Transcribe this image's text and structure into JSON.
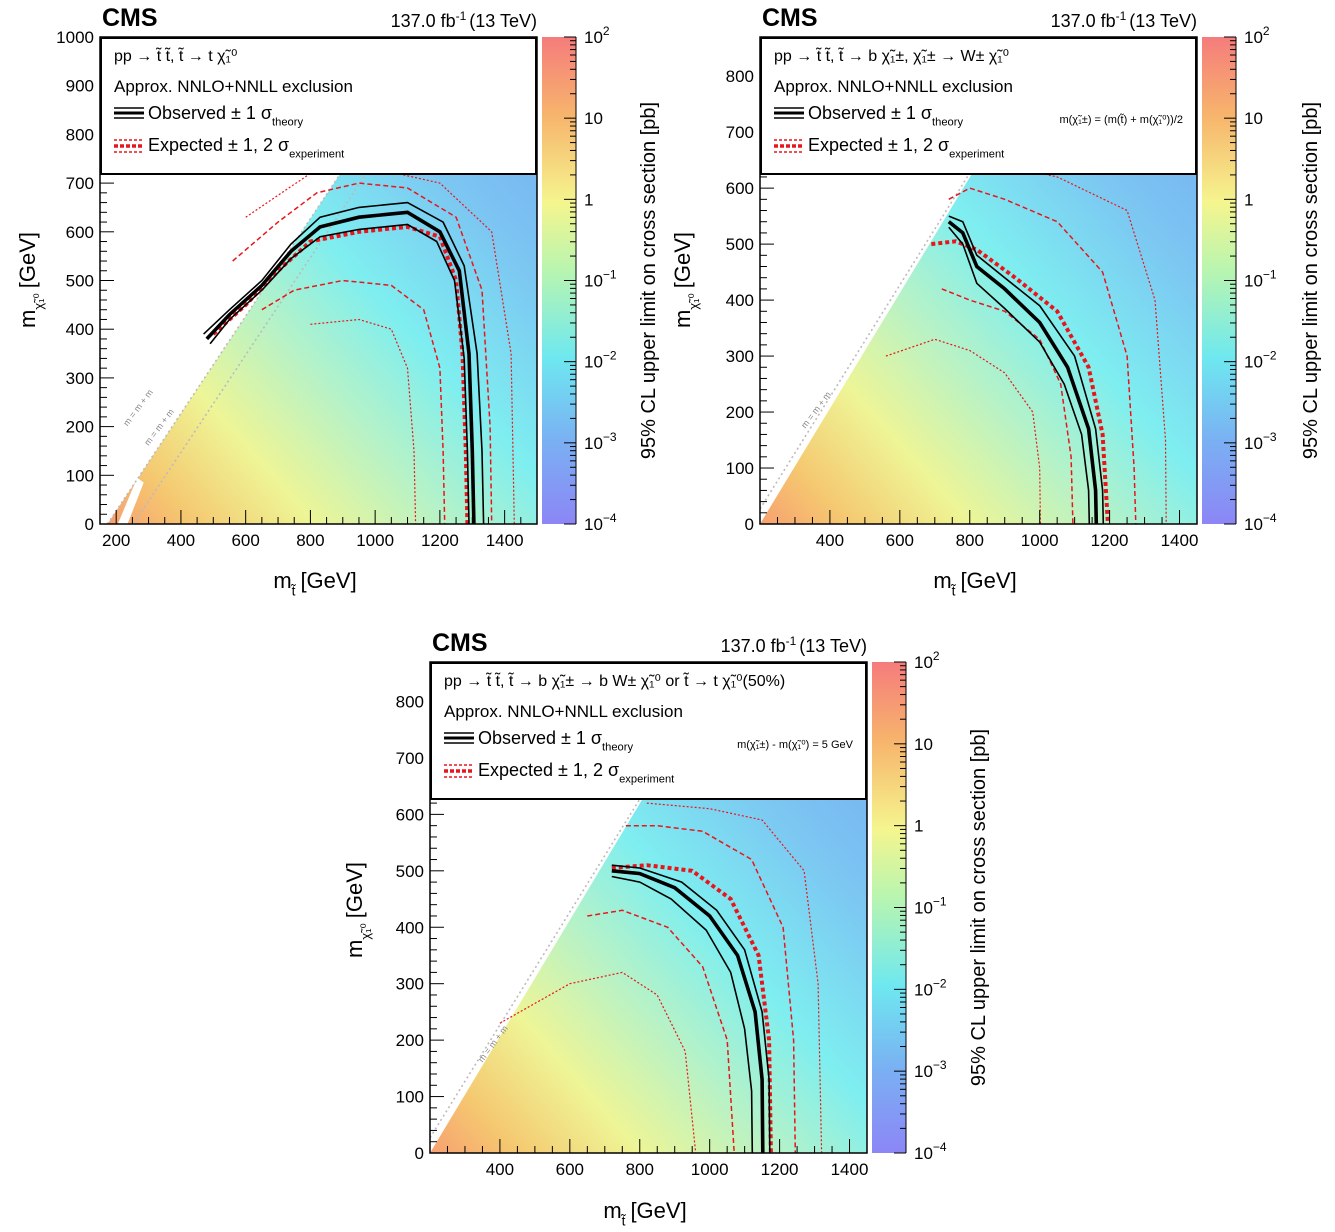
{
  "colorbar": {
    "label": "95% CL upper limit on cross section [pb]",
    "tick_mantissa": "10",
    "ticks": [
      {
        "text": "10",
        "exp": "2",
        "log": 2
      },
      {
        "text": "10",
        "exp": "",
        "log": 1
      },
      {
        "text": "1",
        "exp": "",
        "log": 0
      },
      {
        "text": "10",
        "exp": "−1",
        "log": -1
      },
      {
        "text": "10",
        "exp": "−2",
        "log": -2
      },
      {
        "text": "10",
        "exp": "−3",
        "log": -3
      },
      {
        "text": "10",
        "exp": "−4",
        "log": -4
      }
    ],
    "colors": [
      "#8c86f6",
      "#7ab0f3",
      "#6ee8f0",
      "#b8f5b0",
      "#f5f58e",
      "#f7b46c",
      "#f57c7c"
    ]
  },
  "colors": {
    "observed": "#000000",
    "expected": "#e8161c",
    "diagonal": "#bbbbbb"
  },
  "chart_data": [
    {
      "type": "heatmap",
      "cms": "CMS",
      "lumi": "137.0 fb",
      "lumi_exp": "-1",
      "energy": "(13 TeV)",
      "process_lines": [
        "pp → t̃ t̃, t̃ → t χ̃₁⁰"
      ],
      "approx": "Approx. NNLO+NNLL exclusion",
      "observed_label": "Observed ± 1 σ",
      "observed_sub": "theory",
      "expected_label": "Expected ± 1, 2 σ",
      "expected_sub": "experiment",
      "extra_note": "",
      "xlabel": "m",
      "xlabel_sub": "t̃",
      "xlabel_unit": "[GeV]",
      "ylabel": "m",
      "ylabel_sub": "χ̃₁⁰",
      "ylabel_unit": "[GeV]",
      "xlim": [
        150,
        1500
      ],
      "ylim": [
        0,
        1000
      ],
      "xticks": [
        200,
        400,
        600,
        800,
        1000,
        1200,
        1400
      ],
      "yticks": [
        0,
        100,
        200,
        300,
        400,
        500,
        600,
        700,
        800,
        900,
        1000
      ],
      "diag_labels": [
        "m  = m  + m",
        "m  = m  + m"
      ],
      "observed": [
        [
          480,
          380
        ],
        [
          550,
          430
        ],
        [
          650,
          490
        ],
        [
          740,
          560
        ],
        [
          830,
          610
        ],
        [
          950,
          630
        ],
        [
          1100,
          640
        ],
        [
          1200,
          600
        ],
        [
          1260,
          520
        ],
        [
          1290,
          350
        ],
        [
          1300,
          150
        ],
        [
          1305,
          0
        ]
      ],
      "observed_plus": [
        [
          470,
          390
        ],
        [
          550,
          440
        ],
        [
          650,
          500
        ],
        [
          740,
          575
        ],
        [
          830,
          630
        ],
        [
          950,
          650
        ],
        [
          1100,
          660
        ],
        [
          1210,
          620
        ],
        [
          1275,
          530
        ],
        [
          1315,
          350
        ],
        [
          1330,
          150
        ],
        [
          1335,
          0
        ]
      ],
      "observed_minus": [
        [
          490,
          370
        ],
        [
          550,
          420
        ],
        [
          650,
          480
        ],
        [
          740,
          545
        ],
        [
          830,
          590
        ],
        [
          950,
          605
        ],
        [
          1100,
          615
        ],
        [
          1190,
          580
        ],
        [
          1245,
          500
        ],
        [
          1275,
          340
        ],
        [
          1285,
          150
        ],
        [
          1290,
          0
        ]
      ],
      "expected": [
        [
          500,
          390
        ],
        [
          600,
          450
        ],
        [
          700,
          520
        ],
        [
          800,
          580
        ],
        [
          950,
          600
        ],
        [
          1100,
          610
        ],
        [
          1200,
          590
        ],
        [
          1250,
          500
        ],
        [
          1270,
          350
        ],
        [
          1280,
          150
        ],
        [
          1285,
          0
        ]
      ],
      "expected_1s_up": [
        [
          560,
          540
        ],
        [
          700,
          620
        ],
        [
          820,
          680
        ],
        [
          950,
          700
        ],
        [
          1100,
          690
        ],
        [
          1250,
          630
        ],
        [
          1330,
          480
        ],
        [
          1355,
          200
        ],
        [
          1360,
          0
        ]
      ],
      "expected_1s_dn": [
        [
          650,
          440
        ],
        [
          750,
          480
        ],
        [
          900,
          500
        ],
        [
          1050,
          490
        ],
        [
          1150,
          440
        ],
        [
          1200,
          320
        ],
        [
          1210,
          150
        ],
        [
          1215,
          0
        ]
      ],
      "expected_2s_up": [
        [
          600,
          630
        ],
        [
          800,
          720
        ],
        [
          1000,
          730
        ],
        [
          1200,
          700
        ],
        [
          1360,
          600
        ],
        [
          1420,
          350
        ],
        [
          1430,
          0
        ]
      ],
      "expected_2s_dn": [
        [
          800,
          410
        ],
        [
          950,
          420
        ],
        [
          1050,
          400
        ],
        [
          1100,
          320
        ],
        [
          1120,
          150
        ],
        [
          1125,
          0
        ]
      ]
    },
    {
      "type": "heatmap",
      "cms": "CMS",
      "lumi": "137.0 fb",
      "lumi_exp": "-1",
      "energy": "(13 TeV)",
      "process_lines": [
        "pp → t̃ t̃, t̃ → b χ̃₁±, χ̃₁± → W± χ̃₁⁰"
      ],
      "approx": "Approx. NNLO+NNLL exclusion",
      "observed_label": "Observed ± 1 σ",
      "observed_sub": "theory",
      "expected_label": "Expected ± 1, 2 σ",
      "expected_sub": "experiment",
      "extra_note": "m(χ̃₁±) = (m(t̃) + m(χ̃₁⁰))/2",
      "xlabel": "m",
      "xlabel_sub": "t̃",
      "xlabel_unit": "[GeV]",
      "ylabel": "m",
      "ylabel_sub": "χ̃₁⁰",
      "ylabel_unit": "[GeV]",
      "xlim": [
        200,
        1450
      ],
      "ylim": [
        0,
        870
      ],
      "xticks": [
        400,
        600,
        800,
        1000,
        1200,
        1400
      ],
      "yticks": [
        0,
        100,
        200,
        300,
        400,
        500,
        600,
        700,
        800
      ],
      "diag_labels": [
        "m  = m  + m"
      ],
      "observed": [
        [
          740,
          540
        ],
        [
          780,
          520
        ],
        [
          820,
          460
        ],
        [
          900,
          420
        ],
        [
          1000,
          360
        ],
        [
          1080,
          280
        ],
        [
          1140,
          170
        ],
        [
          1160,
          60
        ],
        [
          1162,
          0
        ]
      ],
      "observed_plus": [
        [
          740,
          550
        ],
        [
          780,
          540
        ],
        [
          820,
          480
        ],
        [
          900,
          440
        ],
        [
          1000,
          390
        ],
        [
          1100,
          300
        ],
        [
          1160,
          170
        ],
        [
          1180,
          60
        ],
        [
          1182,
          0
        ]
      ],
      "observed_minus": [
        [
          740,
          530
        ],
        [
          780,
          500
        ],
        [
          820,
          430
        ],
        [
          900,
          385
        ],
        [
          1000,
          325
        ],
        [
          1070,
          250
        ],
        [
          1120,
          160
        ],
        [
          1140,
          60
        ],
        [
          1142,
          0
        ]
      ],
      "expected": [
        [
          690,
          500
        ],
        [
          760,
          505
        ],
        [
          820,
          490
        ],
        [
          930,
          440
        ],
        [
          1050,
          380
        ],
        [
          1140,
          280
        ],
        [
          1180,
          160
        ],
        [
          1195,
          0
        ]
      ],
      "expected_1s_up": [
        [
          740,
          580
        ],
        [
          800,
          600
        ],
        [
          900,
          580
        ],
        [
          1050,
          540
        ],
        [
          1180,
          450
        ],
        [
          1250,
          300
        ],
        [
          1270,
          100
        ],
        [
          1275,
          0
        ]
      ],
      "expected_1s_dn": [
        [
          720,
          420
        ],
        [
          800,
          400
        ],
        [
          900,
          380
        ],
        [
          1000,
          330
        ],
        [
          1060,
          250
        ],
        [
          1090,
          120
        ],
        [
          1095,
          0
        ]
      ],
      "expected_2s_up": [
        [
          800,
          640
        ],
        [
          900,
          640
        ],
        [
          1050,
          620
        ],
        [
          1250,
          560
        ],
        [
          1330,
          400
        ],
        [
          1360,
          150
        ],
        [
          1362,
          0
        ]
      ],
      "expected_2s_dn": [
        [
          560,
          300
        ],
        [
          700,
          330
        ],
        [
          800,
          310
        ],
        [
          900,
          270
        ],
        [
          980,
          200
        ],
        [
          1000,
          100
        ],
        [
          1002,
          0
        ]
      ]
    },
    {
      "type": "heatmap",
      "cms": "CMS",
      "lumi": "137.0 fb",
      "lumi_exp": "-1",
      "energy": "(13 TeV)",
      "process_lines": [
        "pp → t̃ t̃, t̃ → b χ̃₁± → b W± χ̃₁⁰ or t̃ → t χ̃₁⁰(50%)"
      ],
      "approx": "Approx. NNLO+NNLL exclusion",
      "observed_label": "Observed ± 1 σ",
      "observed_sub": "theory",
      "expected_label": "Expected ± 1, 2 σ",
      "expected_sub": "experiment",
      "extra_note": "m(χ̃₁±) - m(χ̃₁⁰) = 5 GeV",
      "xlabel": "m",
      "xlabel_sub": "t̃",
      "xlabel_unit": "[GeV]",
      "ylabel": "m",
      "ylabel_sub": "χ̃₁⁰",
      "ylabel_unit": "[GeV]",
      "xlim": [
        200,
        1450
      ],
      "ylim": [
        0,
        870
      ],
      "xticks": [
        400,
        600,
        800,
        1000,
        1200,
        1400
      ],
      "yticks": [
        0,
        100,
        200,
        300,
        400,
        500,
        600,
        700,
        800
      ],
      "diag_labels": [
        "m  = m  + m"
      ],
      "observed": [
        [
          720,
          500
        ],
        [
          800,
          495
        ],
        [
          900,
          470
        ],
        [
          1000,
          420
        ],
        [
          1080,
          350
        ],
        [
          1130,
          250
        ],
        [
          1150,
          130
        ],
        [
          1152,
          0
        ]
      ],
      "observed_plus": [
        [
          720,
          510
        ],
        [
          800,
          505
        ],
        [
          920,
          480
        ],
        [
          1020,
          430
        ],
        [
          1100,
          360
        ],
        [
          1150,
          250
        ],
        [
          1170,
          130
        ],
        [
          1172,
          0
        ]
      ],
      "observed_minus": [
        [
          720,
          490
        ],
        [
          800,
          480
        ],
        [
          890,
          450
        ],
        [
          990,
          395
        ],
        [
          1060,
          320
        ],
        [
          1100,
          220
        ],
        [
          1120,
          110
        ],
        [
          1122,
          0
        ]
      ],
      "expected": [
        [
          720,
          505
        ],
        [
          820,
          510
        ],
        [
          950,
          500
        ],
        [
          1060,
          450
        ],
        [
          1140,
          350
        ],
        [
          1170,
          200
        ],
        [
          1175,
          0
        ]
      ],
      "expected_1s_up": [
        [
          760,
          580
        ],
        [
          850,
          580
        ],
        [
          980,
          570
        ],
        [
          1120,
          520
        ],
        [
          1210,
          400
        ],
        [
          1240,
          200
        ],
        [
          1245,
          0
        ]
      ],
      "expected_1s_dn": [
        [
          650,
          420
        ],
        [
          750,
          430
        ],
        [
          880,
          400
        ],
        [
          980,
          330
        ],
        [
          1050,
          200
        ],
        [
          1070,
          0
        ]
      ],
      "expected_2s_up": [
        [
          820,
          620
        ],
        [
          1000,
          610
        ],
        [
          1150,
          590
        ],
        [
          1270,
          500
        ],
        [
          1310,
          300
        ],
        [
          1320,
          0
        ]
      ],
      "expected_2s_dn": [
        [
          400,
          230
        ],
        [
          600,
          300
        ],
        [
          750,
          320
        ],
        [
          850,
          280
        ],
        [
          930,
          180
        ],
        [
          960,
          0
        ]
      ]
    }
  ]
}
